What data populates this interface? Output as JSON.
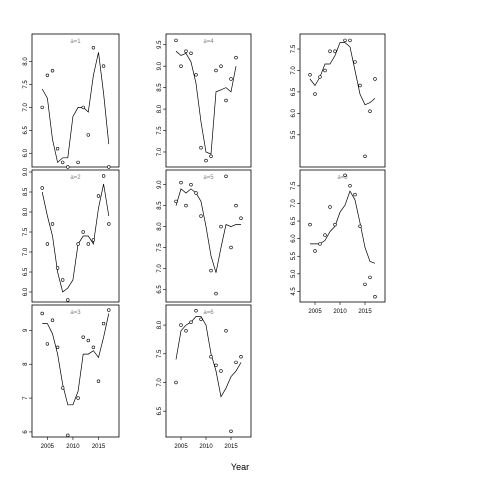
{
  "chart_data": {
    "type": "scatter",
    "xlabel": "Year",
    "panels": [
      {
        "label": "a=1",
        "xlim": [
          2002,
          2019
        ],
        "ylim": [
          5.7,
          8.6
        ],
        "yticks": [
          "6.0",
          "6.5",
          "7.0",
          "7.5",
          "8.0"
        ],
        "points": [
          [
            2004,
            7.0
          ],
          [
            2005,
            7.7
          ],
          [
            2006,
            7.8
          ],
          [
            2007,
            6.1
          ],
          [
            2008,
            5.8
          ],
          [
            2009,
            5.7
          ],
          [
            2011,
            5.8
          ],
          [
            2012,
            7.0
          ],
          [
            2013,
            6.4
          ],
          [
            2014,
            8.3
          ],
          [
            2016,
            7.9
          ],
          [
            2017,
            5.7
          ]
        ],
        "line": [
          [
            2004,
            7.4
          ],
          [
            2005,
            7.2
          ],
          [
            2006,
            6.3
          ],
          [
            2007,
            5.8
          ],
          [
            2008,
            5.9
          ],
          [
            2009,
            5.9
          ],
          [
            2010,
            6.8
          ],
          [
            2011,
            7.0
          ],
          [
            2012,
            7.0
          ],
          [
            2013,
            6.9
          ],
          [
            2014,
            7.7
          ],
          [
            2015,
            8.2
          ],
          [
            2016,
            7.3
          ],
          [
            2017,
            6.2
          ]
        ]
      },
      {
        "label": "a=2",
        "xlim": [
          2002,
          2019
        ],
        "ylim": [
          5.75,
          9.05
        ],
        "yticks": [
          "6.0",
          "6.5",
          "7.0",
          "7.5",
          "8.0",
          "8.5",
          "9.0"
        ],
        "points": [
          [
            2004,
            8.6
          ],
          [
            2005,
            7.2
          ],
          [
            2006,
            7.7
          ],
          [
            2007,
            6.6
          ],
          [
            2008,
            6.3
          ],
          [
            2009,
            5.8
          ],
          [
            2011,
            7.2
          ],
          [
            2012,
            7.5
          ],
          [
            2013,
            7.2
          ],
          [
            2014,
            7.3
          ],
          [
            2015,
            8.4
          ],
          [
            2016,
            8.9
          ],
          [
            2017,
            7.7
          ]
        ],
        "line": [
          [
            2004,
            8.5
          ],
          [
            2005,
            7.9
          ],
          [
            2006,
            7.4
          ],
          [
            2007,
            6.5
          ],
          [
            2008,
            6.0
          ],
          [
            2009,
            6.1
          ],
          [
            2010,
            6.3
          ],
          [
            2011,
            7.2
          ],
          [
            2012,
            7.4
          ],
          [
            2013,
            7.4
          ],
          [
            2014,
            7.2
          ],
          [
            2015,
            8.1
          ],
          [
            2016,
            8.7
          ],
          [
            2017,
            7.9
          ]
        ]
      },
      {
        "label": "a=3",
        "xlim": [
          2002,
          2019
        ],
        "ylim": [
          5.85,
          9.75
        ],
        "yticks": [
          "6",
          "7",
          "8",
          "9"
        ],
        "points": [
          [
            2004,
            9.5
          ],
          [
            2005,
            8.6
          ],
          [
            2006,
            9.3
          ],
          [
            2007,
            8.5
          ],
          [
            2008,
            7.3
          ],
          [
            2009,
            5.9
          ],
          [
            2011,
            7.0
          ],
          [
            2012,
            8.8
          ],
          [
            2013,
            8.7
          ],
          [
            2014,
            8.5
          ],
          [
            2015,
            7.5
          ],
          [
            2016,
            9.2
          ],
          [
            2017,
            9.6
          ]
        ],
        "line": [
          [
            2004,
            9.2
          ],
          [
            2005,
            9.2
          ],
          [
            2006,
            8.9
          ],
          [
            2007,
            8.3
          ],
          [
            2008,
            7.4
          ],
          [
            2009,
            6.8
          ],
          [
            2010,
            6.8
          ],
          [
            2011,
            7.2
          ],
          [
            2012,
            8.3
          ],
          [
            2013,
            8.3
          ],
          [
            2014,
            8.4
          ],
          [
            2015,
            8.2
          ],
          [
            2016,
            8.8
          ],
          [
            2017,
            9.5
          ]
        ]
      },
      {
        "label": "a=4",
        "xlim": [
          2002,
          2019
        ],
        "ylim": [
          6.65,
          9.75
        ],
        "yticks": [
          "7.0",
          "7.5",
          "8.0",
          "8.5",
          "9.0",
          "9.5"
        ],
        "points": [
          [
            2004,
            9.6
          ],
          [
            2005,
            9.0
          ],
          [
            2006,
            9.35
          ],
          [
            2007,
            9.3
          ],
          [
            2008,
            8.8
          ],
          [
            2009,
            7.1
          ],
          [
            2010,
            6.8
          ],
          [
            2011,
            6.9
          ],
          [
            2012,
            8.9
          ],
          [
            2013,
            9.0
          ],
          [
            2014,
            8.2
          ],
          [
            2015,
            8.7
          ],
          [
            2016,
            9.2
          ]
        ],
        "line": [
          [
            2004,
            9.35
          ],
          [
            2005,
            9.25
          ],
          [
            2006,
            9.3
          ],
          [
            2007,
            9.1
          ],
          [
            2008,
            8.6
          ],
          [
            2009,
            7.7
          ],
          [
            2010,
            7.0
          ],
          [
            2011,
            6.95
          ],
          [
            2012,
            8.4
          ],
          [
            2013,
            8.45
          ],
          [
            2014,
            8.5
          ],
          [
            2015,
            8.4
          ],
          [
            2016,
            9.0
          ]
        ]
      },
      {
        "label": "a=5",
        "xlim": [
          2002,
          2019
        ],
        "ylim": [
          6.2,
          9.35
        ],
        "yticks": [
          "6.5",
          "7.0",
          "7.5",
          "8.0",
          "8.5",
          "9.0"
        ],
        "points": [
          [
            2004,
            8.6
          ],
          [
            2005,
            9.05
          ],
          [
            2006,
            8.5
          ],
          [
            2007,
            9.0
          ],
          [
            2008,
            8.8
          ],
          [
            2009,
            8.25
          ],
          [
            2011,
            6.95
          ],
          [
            2012,
            6.4
          ],
          [
            2013,
            8.0
          ],
          [
            2014,
            9.2
          ],
          [
            2015,
            7.5
          ],
          [
            2016,
            8.5
          ],
          [
            2017,
            8.2
          ]
        ],
        "line": [
          [
            2004,
            8.5
          ],
          [
            2005,
            8.9
          ],
          [
            2006,
            8.8
          ],
          [
            2007,
            8.9
          ],
          [
            2008,
            8.8
          ],
          [
            2009,
            8.6
          ],
          [
            2010,
            8.0
          ],
          [
            2011,
            7.3
          ],
          [
            2012,
            6.9
          ],
          [
            2013,
            7.5
          ],
          [
            2014,
            8.05
          ],
          [
            2015,
            8.0
          ],
          [
            2016,
            8.05
          ],
          [
            2017,
            8.05
          ]
        ]
      },
      {
        "label": "a=6",
        "xlim": [
          2002,
          2019
        ],
        "ylim": [
          6.05,
          8.35
        ],
        "yticks": [
          "6.5",
          "7.0",
          "7.5",
          "8.0"
        ],
        "points": [
          [
            2004,
            7.0
          ],
          [
            2005,
            8.0
          ],
          [
            2006,
            7.9
          ],
          [
            2007,
            8.05
          ],
          [
            2008,
            8.25
          ],
          [
            2009,
            8.1
          ],
          [
            2011,
            7.45
          ],
          [
            2012,
            7.3
          ],
          [
            2013,
            7.2
          ],
          [
            2014,
            7.9
          ],
          [
            2015,
            6.15
          ],
          [
            2016,
            7.35
          ],
          [
            2017,
            7.45
          ]
        ],
        "line": [
          [
            2004,
            7.4
          ],
          [
            2005,
            7.9
          ],
          [
            2006,
            8.0
          ],
          [
            2007,
            8.05
          ],
          [
            2008,
            8.15
          ],
          [
            2009,
            8.15
          ],
          [
            2010,
            8.0
          ],
          [
            2011,
            7.5
          ],
          [
            2012,
            7.2
          ],
          [
            2013,
            6.75
          ],
          [
            2014,
            6.9
          ],
          [
            2015,
            7.1
          ],
          [
            2016,
            7.2
          ],
          [
            2017,
            7.35
          ]
        ]
      },
      {
        "label": "",
        "xlim": [
          2002,
          2019
        ],
        "ylim": [
          4.75,
          7.85
        ],
        "yticks": [
          "5.5",
          "6.0",
          "6.5",
          "7.0",
          "7.5"
        ],
        "points": [
          [
            2004,
            6.9
          ],
          [
            2005,
            6.45
          ],
          [
            2006,
            6.85
          ],
          [
            2007,
            7.0
          ],
          [
            2008,
            7.45
          ],
          [
            2009,
            7.45
          ],
          [
            2011,
            7.7
          ],
          [
            2012,
            7.7
          ],
          [
            2013,
            7.2
          ],
          [
            2014,
            6.65
          ],
          [
            2015,
            5.0
          ],
          [
            2016,
            6.05
          ],
          [
            2017,
            6.8
          ]
        ],
        "line": [
          [
            2004,
            6.8
          ],
          [
            2005,
            6.65
          ],
          [
            2006,
            6.85
          ],
          [
            2007,
            7.15
          ],
          [
            2008,
            7.15
          ],
          [
            2009,
            7.35
          ],
          [
            2010,
            7.65
          ],
          [
            2011,
            7.65
          ],
          [
            2012,
            7.55
          ],
          [
            2013,
            7.0
          ],
          [
            2014,
            6.45
          ],
          [
            2015,
            6.2
          ],
          [
            2016,
            6.25
          ],
          [
            2017,
            6.35
          ]
        ]
      },
      {
        "label": "a=8",
        "xlim": [
          2002,
          2019
        ],
        "ylim": [
          4.2,
          7.95
        ],
        "yticks": [
          "4.5",
          "5.0",
          "5.5",
          "6.0",
          "6.5",
          "7.0",
          "7.5"
        ],
        "points": [
          [
            2004,
            6.4
          ],
          [
            2005,
            5.65
          ],
          [
            2006,
            5.85
          ],
          [
            2007,
            6.1
          ],
          [
            2008,
            6.9
          ],
          [
            2009,
            6.4
          ],
          [
            2011,
            7.8
          ],
          [
            2012,
            7.5
          ],
          [
            2013,
            7.25
          ],
          [
            2014,
            6.35
          ],
          [
            2015,
            4.7
          ],
          [
            2016,
            4.9
          ],
          [
            2017,
            4.35
          ]
        ],
        "line": [
          [
            2004,
            5.85
          ],
          [
            2005,
            5.85
          ],
          [
            2006,
            5.85
          ],
          [
            2007,
            5.95
          ],
          [
            2008,
            6.2
          ],
          [
            2009,
            6.35
          ],
          [
            2010,
            6.75
          ],
          [
            2011,
            6.95
          ],
          [
            2012,
            7.35
          ],
          [
            2013,
            7.1
          ],
          [
            2014,
            6.45
          ],
          [
            2015,
            5.75
          ],
          [
            2016,
            5.35
          ],
          [
            2017,
            5.3
          ]
        ]
      }
    ],
    "xticks": [
      "2005",
      "2010",
      "2015"
    ]
  }
}
